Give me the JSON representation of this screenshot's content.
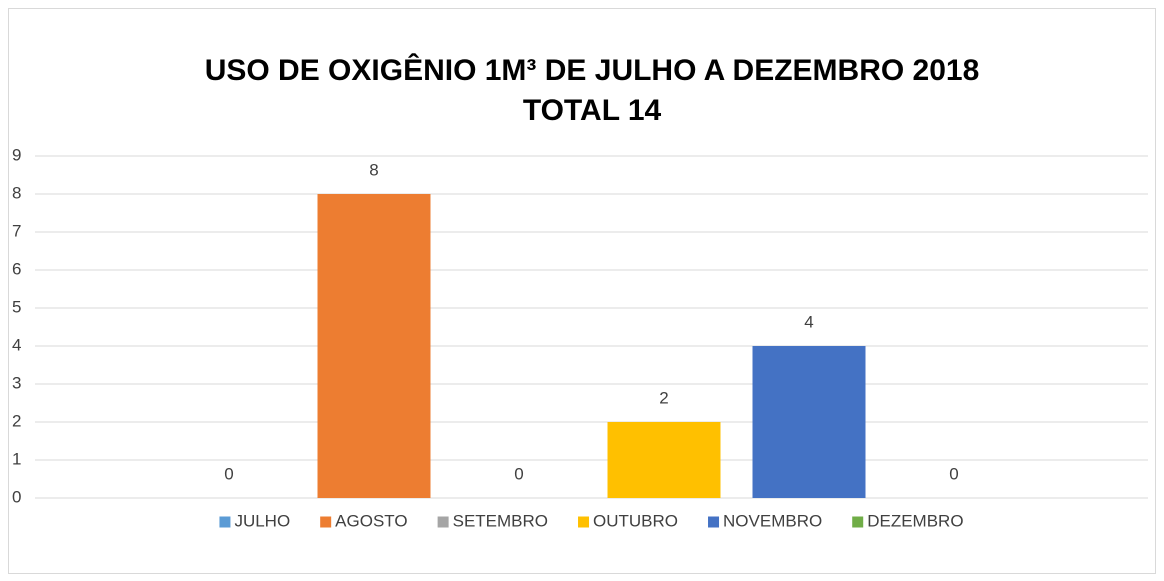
{
  "chart_data": {
    "type": "bar",
    "title": "USO DE OXIGÊNIO 1M³ DE JULHO A DEZEMBRO 2018",
    "subtitle": "TOTAL 14",
    "categories": [
      null
    ],
    "series": [
      {
        "name": "JULHO",
        "color": "#5b9bd5",
        "values": [
          0
        ]
      },
      {
        "name": "AGOSTO",
        "color": "#ed7d31",
        "values": [
          8
        ]
      },
      {
        "name": "SETEMBRO",
        "color": "#a5a5a5",
        "values": [
          0
        ]
      },
      {
        "name": "OUTUBRO",
        "color": "#ffc000",
        "values": [
          2
        ]
      },
      {
        "name": "NOVEMBRO",
        "color": "#4472c4",
        "values": [
          4
        ]
      },
      {
        "name": "DEZEMBRO",
        "color": "#70ad47",
        "values": [
          0
        ]
      }
    ],
    "ylim": [
      0,
      9
    ],
    "yticks": [
      0,
      1,
      2,
      3,
      4,
      5,
      6,
      7,
      8,
      9
    ],
    "grid": true,
    "legend": "bottom"
  }
}
